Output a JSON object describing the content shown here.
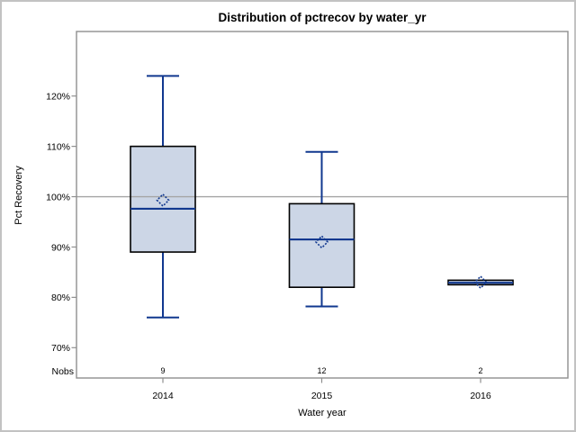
{
  "chart_data": {
    "type": "box",
    "title": "Distribution of pctrecov by water_yr",
    "xlabel": "Water year",
    "ylabel": "Pct Recovery",
    "nobs_label": "Nobs",
    "categories": [
      "2014",
      "2015",
      "2016"
    ],
    "nobs": [
      "9",
      "12",
      "2"
    ],
    "y_ticks": [
      70,
      80,
      90,
      100,
      110,
      120
    ],
    "y_tick_suffix": "%",
    "ylim": [
      64,
      133
    ],
    "reference_line": 100,
    "grid": "off",
    "legend": "none",
    "series": [
      {
        "category": "2014",
        "n": 9,
        "whisker_low": 76.0,
        "q1": 89.0,
        "median": 97.6,
        "mean": 99.3,
        "q3": 110.0,
        "whisker_high": 124.0
      },
      {
        "category": "2015",
        "n": 12,
        "whisker_low": 78.2,
        "q1": 82.0,
        "median": 91.5,
        "mean": 91.0,
        "q3": 98.6,
        "whisker_high": 108.9
      },
      {
        "category": "2016",
        "n": 2,
        "whisker_low": 82.5,
        "q1": 82.5,
        "median": 82.9,
        "mean": 83.0,
        "q3": 83.4,
        "whisker_high": 83.4
      }
    ],
    "colors": {
      "box_fill": "#ccd6e6",
      "box_border": "#000000",
      "whisker_median_mean": "#11388f",
      "reference_line": "#a5a5a5",
      "plot_frame": "#8f8f8f",
      "tick": "#8f8f8f",
      "text": "#000000",
      "outer_border": "#c2c2c2",
      "background": "#ffffff"
    }
  }
}
